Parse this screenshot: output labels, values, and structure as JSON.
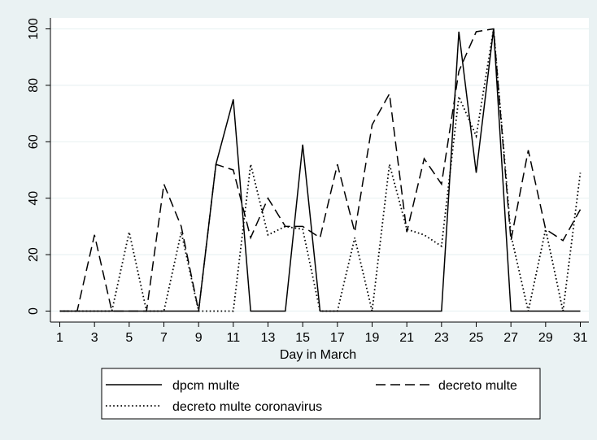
{
  "chart_data": {
    "type": "line",
    "xlabel": "Day in March",
    "ylabel": "",
    "xlim": [
      1,
      31
    ],
    "ylim": [
      0,
      100
    ],
    "x_ticks": [
      1,
      3,
      5,
      7,
      9,
      11,
      13,
      15,
      17,
      19,
      21,
      23,
      25,
      27,
      29,
      31
    ],
    "y_ticks": [
      0,
      20,
      40,
      60,
      80,
      100
    ],
    "grid": "horizontal",
    "legend_position": "bottom",
    "x": [
      1,
      2,
      3,
      4,
      5,
      6,
      7,
      8,
      9,
      10,
      11,
      12,
      13,
      14,
      15,
      16,
      17,
      18,
      19,
      20,
      21,
      22,
      23,
      24,
      25,
      26,
      27,
      28,
      29,
      30,
      31
    ],
    "series": [
      {
        "name": "dpcm multe",
        "style": "solid",
        "values": [
          0,
          0,
          0,
          0,
          0,
          0,
          0,
          0,
          0,
          52,
          75,
          0,
          0,
          0,
          59,
          0,
          0,
          0,
          0,
          0,
          0,
          0,
          0,
          99,
          49,
          100,
          0,
          0,
          0,
          0,
          0
        ]
      },
      {
        "name": "decreto multe",
        "style": "dashed",
        "values": [
          0,
          0,
          27,
          0,
          0,
          0,
          45,
          30,
          0,
          52,
          50,
          26,
          40,
          30,
          30,
          26,
          52,
          28,
          66,
          77,
          28,
          54,
          45,
          85,
          99,
          100,
          25,
          57,
          29,
          25,
          36
        ]
      },
      {
        "name": "decreto multe coronavirus",
        "style": "dotted",
        "values": [
          0,
          0,
          0,
          0,
          28,
          0,
          0,
          28,
          0,
          0,
          0,
          52,
          27,
          30,
          29,
          0,
          0,
          26,
          0,
          52,
          29,
          27,
          23,
          76,
          62,
          100,
          27,
          0,
          29,
          0,
          49
        ]
      }
    ],
    "colors": {
      "line": "#000000",
      "plot_bg": "#ffffff",
      "outer_bg": "#eaf2f3",
      "grid": "#eaf2f3"
    }
  }
}
